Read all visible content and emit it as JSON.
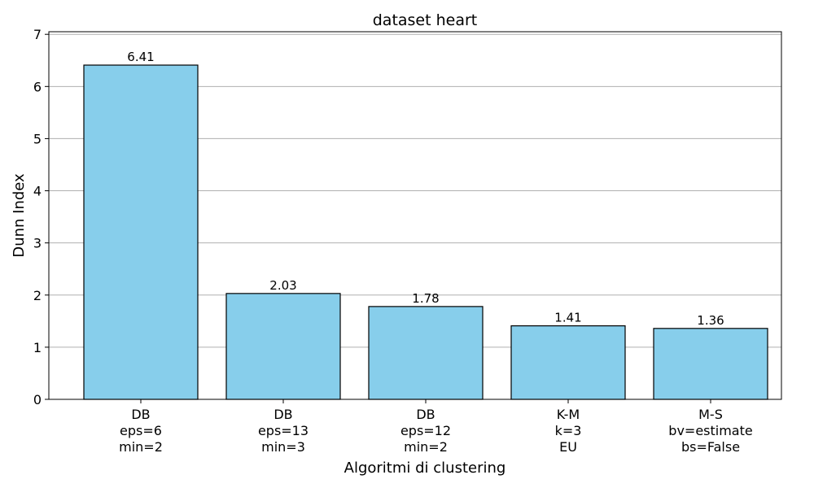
{
  "chart_data": {
    "type": "bar",
    "title": "dataset heart",
    "xlabel": "Algoritmi di clustering",
    "ylabel": "Dunn Index",
    "categories": [
      [
        "DB",
        "eps=6",
        "min=2"
      ],
      [
        "DB",
        "eps=13",
        "min=3"
      ],
      [
        "DB",
        "eps=12",
        "min=2"
      ],
      [
        "K-M",
        "k=3",
        "EU"
      ],
      [
        "M-S",
        "bv=estimate",
        "bs=False"
      ]
    ],
    "values": [
      6.41,
      2.03,
      1.78,
      1.41,
      1.36
    ],
    "value_labels": [
      "6.41",
      "2.03",
      "1.78",
      "1.41",
      "1.36"
    ],
    "ylim": [
      0,
      7.05
    ],
    "yticks": [
      0,
      1,
      2,
      3,
      4,
      5,
      6,
      7
    ],
    "grid": "y",
    "colors": {
      "bar_fill": "#87CEEB",
      "bar_edge": "#000000",
      "grid": "#b0b0b0"
    }
  }
}
